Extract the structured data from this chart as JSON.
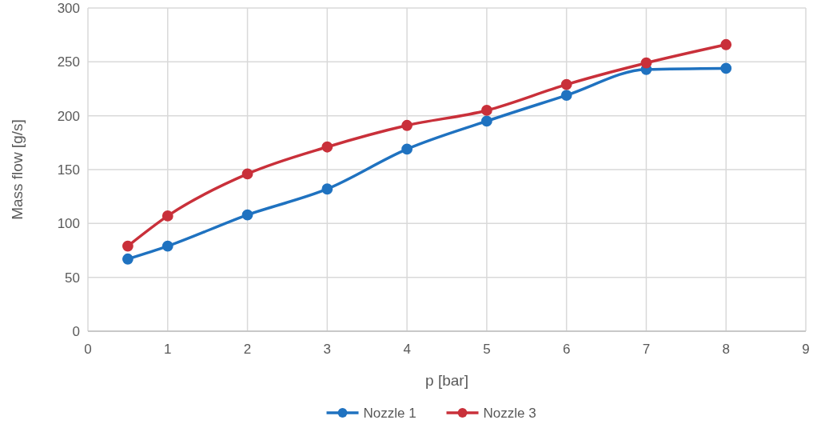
{
  "chart_data": {
    "type": "line",
    "xlabel": "p [bar]",
    "ylabel": "Mass flow [g/s]",
    "x": [
      0.5,
      1,
      2,
      3,
      4,
      5,
      6,
      7,
      8
    ],
    "series": [
      {
        "name": "Nozzle 1",
        "color": "#1f72c0",
        "values": [
          67,
          79,
          108,
          132,
          169,
          195,
          219,
          243,
          244
        ]
      },
      {
        "name": "Nozzle 3",
        "color": "#c9303a",
        "values": [
          79,
          107,
          146,
          171,
          191,
          205,
          229,
          249,
          266
        ]
      }
    ],
    "xlim": [
      0,
      9
    ],
    "xticks": [
      0,
      1,
      2,
      3,
      4,
      5,
      6,
      7,
      8,
      9
    ],
    "ylim": [
      0,
      300
    ],
    "yticks": [
      0,
      50,
      100,
      150,
      200,
      250,
      300
    ],
    "grid": true,
    "legend": "bottom",
    "marker": "circle",
    "line_style": "solid"
  }
}
